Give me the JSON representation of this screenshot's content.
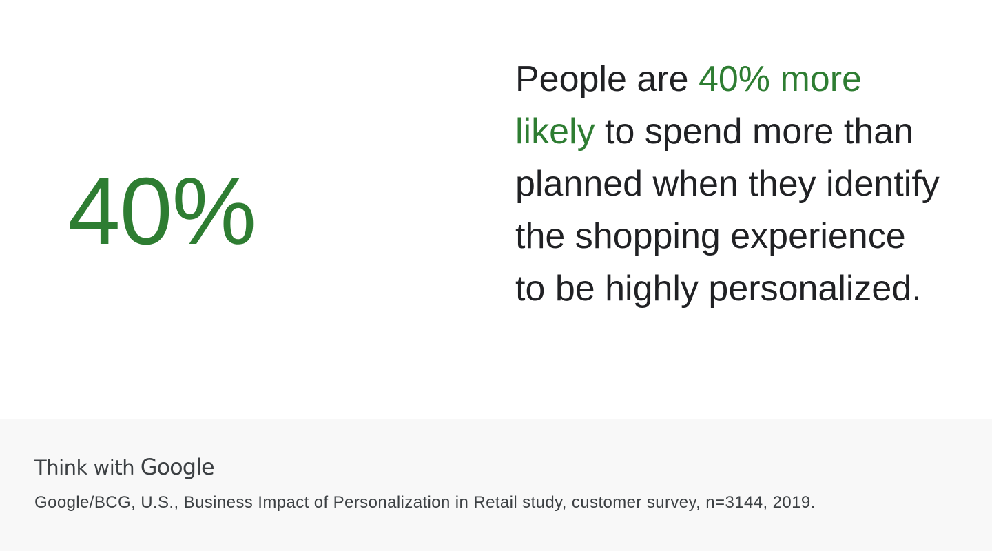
{
  "stat": {
    "value_text": "40%",
    "accent_color": "#2e7d32"
  },
  "statement": {
    "prefix": "People are ",
    "highlight": "40% more likely",
    "suffix": " to spend more than planned when they identify the shopping experience to be highly personalized."
  },
  "footer": {
    "logo_think": "Think with",
    "logo_google": "Google",
    "source": "Google/BCG, U.S., Business Impact of Personalization in Retail study, customer survey, n=3144, 2019."
  },
  "colors": {
    "text": "#202124",
    "footer_background": "#f8f8f8",
    "footer_text": "#3c4043"
  }
}
